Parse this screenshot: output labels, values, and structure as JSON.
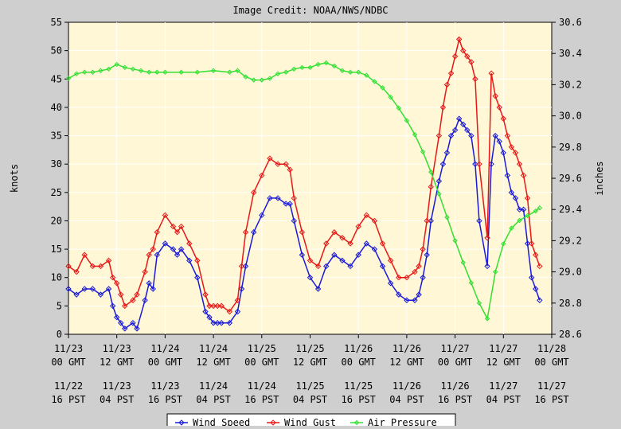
{
  "credit": "Image Credit: NOAA/NWS/NDBC",
  "colors": {
    "background": "#cfcfcf",
    "plot_background": "#fff7d6",
    "grid": "#ffffff",
    "wind_speed": "#1a1ad9",
    "wind_gust": "#e81818",
    "air_pressure": "#33e033"
  },
  "chart_data": {
    "type": "line",
    "ylabel": "knots",
    "y2label": "inches",
    "ylim": [
      0,
      55
    ],
    "y2lim": [
      28.6,
      30.6
    ],
    "yticks": [
      "0",
      "5",
      "10",
      "15",
      "20",
      "25",
      "30",
      "35",
      "40",
      "45",
      "50",
      "55"
    ],
    "y2ticks": [
      "28.6",
      "28.8",
      "29.0",
      "29.2",
      "29.4",
      "29.6",
      "29.8",
      "30.0",
      "30.2",
      "30.4",
      "30.6"
    ],
    "xlim": [
      0,
      120
    ],
    "x_unit": "hours since 11/23 00 GMT",
    "xticks_gmt": [
      [
        "11/23",
        "00 GMT"
      ],
      [
        "11/23",
        "12 GMT"
      ],
      [
        "11/24",
        "00 GMT"
      ],
      [
        "11/24",
        "12 GMT"
      ],
      [
        "11/25",
        "00 GMT"
      ],
      [
        "11/25",
        "12 GMT"
      ],
      [
        "11/26",
        "00 GMT"
      ],
      [
        "11/26",
        "12 GMT"
      ],
      [
        "11/27",
        "00 GMT"
      ],
      [
        "11/27",
        "12 GMT"
      ],
      [
        "11/28",
        "00 GMT"
      ]
    ],
    "xticks_pst": [
      [
        "11/22",
        "16 PST"
      ],
      [
        "11/23",
        "04 PST"
      ],
      [
        "11/23",
        "16 PST"
      ],
      [
        "11/24",
        "04 PST"
      ],
      [
        "11/24",
        "16 PST"
      ],
      [
        "11/25",
        "04 PST"
      ],
      [
        "11/25",
        "16 PST"
      ],
      [
        "11/26",
        "04 PST"
      ],
      [
        "11/26",
        "16 PST"
      ],
      [
        "11/27",
        "04 PST"
      ],
      [
        "11/27",
        "16 PST"
      ]
    ],
    "grid": true,
    "legend": "bottom",
    "series": [
      {
        "name": "Wind Speed",
        "axis": "left",
        "color": "#1a1ad9",
        "x": [
          0,
          2,
          4,
          6,
          8,
          10,
          11,
          12,
          13,
          14,
          16,
          17,
          19,
          20,
          21,
          22,
          24,
          26,
          27,
          28,
          30,
          32,
          34,
          35,
          36,
          37,
          38,
          40,
          42,
          43,
          44,
          46,
          48,
          50,
          52,
          54,
          55,
          56,
          58,
          60,
          62,
          64,
          66,
          68,
          70,
          72,
          74,
          76,
          78,
          80,
          82,
          84,
          86,
          87,
          88,
          89,
          90,
          92,
          93,
          94,
          95,
          96,
          97,
          98,
          99,
          100,
          101,
          102,
          104,
          105,
          106,
          107,
          108,
          109,
          110,
          111,
          112,
          113
        ],
        "y": [
          8,
          7,
          8,
          8,
          7,
          8,
          5,
          3,
          2,
          1,
          2,
          1,
          6,
          9,
          8,
          14,
          16,
          15,
          14,
          15,
          13,
          10,
          4,
          3,
          2,
          2,
          2,
          2,
          4,
          8,
          12,
          18,
          21,
          24,
          24,
          23,
          23,
          20,
          14,
          10,
          8,
          12,
          14,
          13,
          12,
          14,
          16,
          15,
          12,
          9,
          7,
          6,
          6,
          7,
          10,
          14,
          20,
          27,
          30,
          32,
          35,
          36,
          38,
          37,
          36,
          35,
          30,
          20,
          12,
          30,
          35,
          34,
          32,
          28,
          25,
          24,
          22,
          22
        ],
        "end_x": [
          114,
          115,
          116,
          117
        ],
        "end_y": [
          16,
          10,
          8,
          6
        ]
      },
      {
        "name": "Wind Gust",
        "axis": "left",
        "color": "#e81818",
        "x": [
          0,
          2,
          4,
          6,
          8,
          10,
          11,
          12,
          13,
          14,
          16,
          17,
          19,
          20,
          21,
          22,
          24,
          26,
          27,
          28,
          30,
          32,
          34,
          35,
          36,
          37,
          38,
          40,
          42,
          43,
          44,
          46,
          48,
          50,
          52,
          54,
          55,
          56,
          58,
          60,
          62,
          64,
          66,
          68,
          70,
          72,
          74,
          76,
          78,
          80,
          82,
          84,
          86,
          87,
          88,
          89,
          90,
          92,
          93,
          94,
          95,
          96,
          97,
          98,
          99,
          100,
          101,
          102,
          104,
          105,
          106,
          107,
          108,
          109,
          110,
          111,
          112,
          113
        ],
        "y": [
          12,
          11,
          14,
          12,
          12,
          13,
          10,
          9,
          7,
          5,
          6,
          7,
          11,
          14,
          15,
          18,
          21,
          19,
          18,
          19,
          16,
          13,
          7,
          5,
          5,
          5,
          5,
          4,
          6,
          12,
          18,
          25,
          28,
          31,
          30,
          30,
          29,
          24,
          18,
          13,
          12,
          16,
          18,
          17,
          16,
          19,
          21,
          20,
          16,
          13,
          10,
          10,
          11,
          12,
          15,
          20,
          26,
          35,
          40,
          44,
          46,
          49,
          52,
          50,
          49,
          48,
          45,
          30,
          17,
          46,
          42,
          40,
          38,
          35,
          33,
          32,
          30,
          28
        ],
        "end_x": [
          114,
          115,
          116,
          117
        ],
        "end_y": [
          24,
          16,
          14,
          12
        ]
      },
      {
        "name": "Air Pressure",
        "axis": "right",
        "color": "#33e033",
        "x": [
          0,
          2,
          4,
          6,
          8,
          10,
          12,
          14,
          16,
          18,
          20,
          22,
          24,
          28,
          32,
          36,
          40,
          42,
          44,
          46,
          48,
          50,
          52,
          54,
          56,
          58,
          60,
          62,
          64,
          66,
          68,
          70,
          72,
          74,
          76,
          78,
          80,
          82,
          84,
          86,
          88,
          90,
          92,
          94,
          96,
          98,
          100,
          102,
          104,
          106,
          108,
          110,
          112,
          114,
          116,
          117
        ],
        "y": [
          30.24,
          30.27,
          30.28,
          30.28,
          30.29,
          30.3,
          30.33,
          30.31,
          30.3,
          30.29,
          30.28,
          30.28,
          30.28,
          30.28,
          30.28,
          30.29,
          30.28,
          30.29,
          30.25,
          30.23,
          30.23,
          30.24,
          30.27,
          30.28,
          30.3,
          30.31,
          30.31,
          30.33,
          30.34,
          30.32,
          30.29,
          30.28,
          30.28,
          30.26,
          30.22,
          30.18,
          30.12,
          30.05,
          29.97,
          29.88,
          29.77,
          29.64,
          29.5,
          29.35,
          29.2,
          29.06,
          28.93,
          28.8,
          28.7,
          29.0,
          29.18,
          29.28,
          29.33,
          29.36,
          29.39,
          29.41
        ]
      }
    ]
  }
}
